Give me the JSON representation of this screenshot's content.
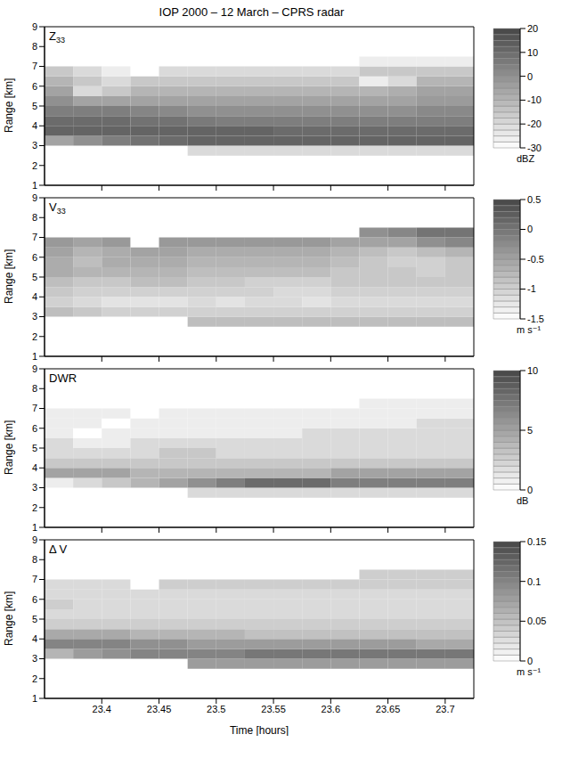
{
  "title": "IOP 2000 – 12 March – CPRS radar",
  "chart_data": [
    {
      "type": "heatmap",
      "label": "Z33",
      "ylabel": "Range [km]",
      "tick_labels": "y",
      "x": [
        23.3625,
        23.3875,
        23.4125,
        23.4375,
        23.4625,
        23.4875,
        23.5125,
        23.5375,
        23.5625,
        23.5875,
        23.6125,
        23.6375,
        23.6625,
        23.6875,
        23.7125
      ],
      "y": [
        2.75,
        3.25,
        3.75,
        4.25,
        4.75,
        5.25,
        5.75,
        6.25,
        6.75,
        7.25
      ],
      "xlim": [
        23.35,
        23.725
      ],
      "ylim": [
        1,
        9
      ],
      "xticks": [
        23.4,
        23.45,
        23.5,
        23.55,
        23.6,
        23.65,
        23.7
      ],
      "yticks": [
        1,
        2,
        3,
        4,
        5,
        6,
        7,
        8,
        9
      ],
      "cells": [
        [
          null,
          null,
          null,
          null,
          null,
          -20,
          -20,
          -20,
          -20,
          -20,
          -20,
          -20,
          -20,
          -20,
          -20
        ],
        [
          -5,
          0,
          5,
          8,
          10,
          12,
          12,
          12,
          12,
          12,
          12,
          12,
          12,
          12,
          12
        ],
        [
          12,
          12,
          12,
          12,
          12,
          12,
          12,
          12,
          10,
          10,
          10,
          10,
          10,
          10,
          10
        ],
        [
          10,
          10,
          10,
          8,
          8,
          6,
          5,
          5,
          5,
          5,
          5,
          5,
          5,
          5,
          5
        ],
        [
          5,
          5,
          5,
          3,
          2,
          0,
          0,
          0,
          0,
          0,
          0,
          0,
          0,
          2,
          2
        ],
        [
          0,
          -5,
          -5,
          -5,
          -5,
          -5,
          -5,
          -5,
          -5,
          -5,
          -5,
          -5,
          -5,
          -3,
          -3
        ],
        [
          -5,
          -20,
          -15,
          -10,
          -10,
          -10,
          -10,
          -10,
          -10,
          -10,
          -10,
          -10,
          -8,
          -5,
          -5
        ],
        [
          -10,
          -15,
          -20,
          -15,
          -15,
          -15,
          -15,
          -15,
          -15,
          -15,
          -15,
          -25,
          -20,
          -10,
          -10
        ],
        [
          -15,
          -20,
          -25,
          null,
          -20,
          -20,
          -20,
          -20,
          -20,
          -20,
          -20,
          -15,
          -15,
          -15,
          -15
        ],
        [
          null,
          null,
          null,
          null,
          null,
          null,
          null,
          null,
          null,
          null,
          null,
          -25,
          -25,
          -25,
          -25
        ]
      ],
      "colorbar_range": [
        -30,
        20
      ],
      "colorbar_ticks": [
        -30,
        -20,
        -10,
        0,
        10,
        20
      ],
      "colorbar_label": "dBZ"
    },
    {
      "type": "heatmap",
      "label": "V33",
      "ylabel": "Range [km]",
      "tick_labels": "y",
      "x": [
        23.3625,
        23.3875,
        23.4125,
        23.4375,
        23.4625,
        23.4875,
        23.5125,
        23.5375,
        23.5625,
        23.5875,
        23.6125,
        23.6375,
        23.6625,
        23.6875,
        23.7125
      ],
      "y": [
        2.75,
        3.25,
        3.75,
        4.25,
        4.75,
        5.25,
        5.75,
        6.25,
        6.75,
        7.25
      ],
      "xlim": [
        23.35,
        23.725
      ],
      "ylim": [
        1,
        9
      ],
      "xticks": [
        23.4,
        23.45,
        23.5,
        23.55,
        23.6,
        23.65,
        23.7
      ],
      "yticks": [
        1,
        2,
        3,
        4,
        5,
        6,
        7,
        8,
        9
      ],
      "cells": [
        [
          null,
          null,
          null,
          null,
          null,
          -0.8,
          -0.8,
          -0.8,
          -0.8,
          -0.8,
          -0.8,
          -0.8,
          -0.8,
          -0.8,
          -0.8
        ],
        [
          -0.8,
          -0.9,
          -1,
          -1,
          -1,
          -1,
          -1,
          -1,
          -1,
          -1,
          -1,
          -1,
          -1,
          -1,
          -1
        ],
        [
          -1,
          -1.1,
          -1.2,
          -1.2,
          -1.2,
          -1.1,
          -1.2,
          -1.1,
          -1.1,
          -1.2,
          -1.1,
          -1.1,
          -1.1,
          -1.1,
          -1.1
        ],
        [
          -0.9,
          -1,
          -1,
          -1,
          -1,
          -1,
          -1,
          -1,
          -1.1,
          -1.1,
          -1,
          -1,
          -1,
          -1,
          -1
        ],
        [
          -0.8,
          -0.9,
          -0.9,
          -0.8,
          -0.8,
          -0.9,
          -0.9,
          -1,
          -1,
          -1,
          -0.9,
          -0.9,
          -0.9,
          -0.9,
          -0.9
        ],
        [
          -0.6,
          -0.7,
          -0.7,
          -0.7,
          -0.7,
          -0.8,
          -0.8,
          -0.8,
          -0.8,
          -0.8,
          -0.9,
          -0.9,
          -0.9,
          -1,
          -0.9
        ],
        [
          -0.6,
          -0.8,
          -0.6,
          -0.6,
          -0.6,
          -0.7,
          -0.7,
          -0.7,
          -0.7,
          -0.7,
          -0.8,
          -0.9,
          -1,
          -1,
          -0.9
        ],
        [
          -0.5,
          -0.7,
          -0.6,
          -0.5,
          -0.5,
          -0.6,
          -0.6,
          -0.6,
          -0.6,
          -0.6,
          -0.7,
          -0.8,
          -0.9,
          -0.8,
          -0.7
        ],
        [
          -0.4,
          -0.5,
          -0.4,
          null,
          -0.4,
          -0.4,
          -0.4,
          -0.4,
          -0.4,
          -0.4,
          -0.5,
          -0.5,
          -0.5,
          -0.3,
          -0.2
        ],
        [
          null,
          null,
          null,
          null,
          null,
          null,
          null,
          null,
          null,
          null,
          null,
          -0.3,
          -0.2,
          0,
          0
        ]
      ],
      "colorbar_range": [
        -1.5,
        0.5
      ],
      "colorbar_ticks": [
        -1.5,
        -1,
        -0.5,
        0,
        0.5
      ],
      "colorbar_label": "m s⁻¹"
    },
    {
      "type": "heatmap",
      "label": "DWR",
      "ylabel": "Range [km]",
      "tick_labels": "y",
      "x": [
        23.3625,
        23.3875,
        23.4125,
        23.4375,
        23.4625,
        23.4875,
        23.5125,
        23.5375,
        23.5625,
        23.5875,
        23.6125,
        23.6375,
        23.6625,
        23.6875,
        23.7125
      ],
      "y": [
        2.75,
        3.25,
        3.75,
        4.25,
        4.75,
        5.25,
        5.75,
        6.25,
        6.75,
        7.25
      ],
      "xlim": [
        23.35,
        23.725
      ],
      "ylim": [
        1,
        9
      ],
      "xticks": [
        23.4,
        23.45,
        23.5,
        23.55,
        23.6,
        23.65,
        23.7
      ],
      "yticks": [
        1,
        2,
        3,
        4,
        5,
        6,
        7,
        8,
        9
      ],
      "cells": [
        [
          null,
          null,
          null,
          null,
          null,
          2,
          2,
          2,
          2,
          2,
          2,
          2,
          2,
          2,
          2
        ],
        [
          1,
          2,
          3,
          4,
          5,
          6,
          7,
          8,
          8,
          8,
          7,
          7,
          7,
          7,
          7
        ],
        [
          5,
          5,
          5,
          4,
          4,
          4,
          4,
          4,
          4,
          4,
          5,
          5,
          5,
          5,
          5
        ],
        [
          3,
          3,
          3,
          3,
          3,
          3,
          3,
          3,
          3,
          3,
          3,
          3,
          3,
          3,
          3
        ],
        [
          2,
          2,
          2,
          2,
          3,
          3,
          2,
          2,
          2,
          2,
          2,
          2,
          2,
          2,
          2
        ],
        [
          2,
          1,
          1,
          2,
          2,
          2,
          2,
          2,
          2,
          2,
          2,
          2,
          2,
          2,
          2
        ],
        [
          1,
          0,
          1,
          1,
          1,
          1,
          1,
          1,
          1,
          2,
          2,
          2,
          2,
          2,
          2
        ],
        [
          1,
          1,
          0,
          1,
          1,
          1,
          1,
          1,
          1,
          1,
          1,
          1,
          1,
          2,
          2
        ],
        [
          1,
          1,
          1,
          null,
          1,
          1,
          1,
          1,
          1,
          1,
          1,
          1,
          1,
          1,
          1
        ],
        [
          null,
          null,
          null,
          null,
          null,
          null,
          null,
          null,
          null,
          null,
          null,
          1,
          1,
          1,
          1
        ]
      ],
      "colorbar_range": [
        0,
        10
      ],
      "colorbar_ticks": [
        0,
        5,
        10
      ],
      "colorbar_label": "dB"
    },
    {
      "type": "heatmap",
      "label": "Δ V",
      "ylabel": "Range [km]",
      "xlabel": "Time [hours]",
      "tick_labels": true,
      "x": [
        23.3625,
        23.3875,
        23.4125,
        23.4375,
        23.4625,
        23.4875,
        23.5125,
        23.5375,
        23.5625,
        23.5875,
        23.6125,
        23.6375,
        23.6625,
        23.6875,
        23.7125
      ],
      "y": [
        2.75,
        3.25,
        3.75,
        4.25,
        4.75,
        5.25,
        5.75,
        6.25,
        6.75,
        7.25
      ],
      "xlim": [
        23.35,
        23.725
      ],
      "ylim": [
        1,
        9
      ],
      "xticks": [
        23.4,
        23.45,
        23.5,
        23.55,
        23.6,
        23.65,
        23.7
      ],
      "yticks": [
        1,
        2,
        3,
        4,
        5,
        6,
        7,
        8,
        9
      ],
      "cells": [
        [
          null,
          null,
          null,
          null,
          null,
          0.08,
          0.08,
          0.08,
          0.08,
          0.08,
          0.08,
          0.08,
          0.08,
          0.08,
          0.08
        ],
        [
          0.06,
          0.08,
          0.09,
          0.1,
          0.1,
          0.1,
          0.1,
          0.11,
          0.11,
          0.11,
          0.11,
          0.11,
          0.11,
          0.11,
          0.11
        ],
        [
          0.1,
          0.1,
          0.1,
          0.09,
          0.09,
          0.08,
          0.08,
          0.08,
          0.08,
          0.08,
          0.08,
          0.08,
          0.08,
          0.07,
          0.07
        ],
        [
          0.07,
          0.07,
          0.07,
          0.06,
          0.06,
          0.06,
          0.06,
          0.05,
          0.05,
          0.05,
          0.05,
          0.05,
          0.05,
          0.05,
          0.05
        ],
        [
          0.04,
          0.04,
          0.04,
          0.04,
          0.04,
          0.04,
          0.04,
          0.04,
          0.04,
          0.04,
          0.04,
          0.04,
          0.04,
          0.04,
          0.04
        ],
        [
          0.03,
          0.03,
          0.03,
          0.03,
          0.03,
          0.03,
          0.03,
          0.03,
          0.03,
          0.03,
          0.03,
          0.03,
          0.03,
          0.03,
          0.03
        ],
        [
          0.04,
          0.03,
          0.03,
          0.03,
          0.03,
          0.03,
          0.03,
          0.03,
          0.03,
          0.03,
          0.03,
          0.03,
          0.03,
          0.03,
          0.03
        ],
        [
          0.03,
          0.03,
          0.03,
          0.03,
          0.03,
          0.03,
          0.03,
          0.03,
          0.03,
          0.03,
          0.03,
          0.03,
          0.03,
          0.03,
          0.03
        ],
        [
          0.03,
          0.03,
          0.03,
          null,
          0.04,
          0.04,
          0.04,
          0.04,
          0.04,
          0.04,
          0.04,
          0.04,
          0.04,
          0.04,
          0.04
        ],
        [
          null,
          null,
          null,
          null,
          null,
          null,
          null,
          null,
          null,
          null,
          null,
          0.04,
          0.04,
          0.04,
          0.04
        ]
      ],
      "colorbar_range": [
        0,
        0.15
      ],
      "colorbar_ticks": [
        0,
        0.05,
        0.1,
        0.15
      ],
      "colorbar_label": "m s⁻¹"
    }
  ]
}
